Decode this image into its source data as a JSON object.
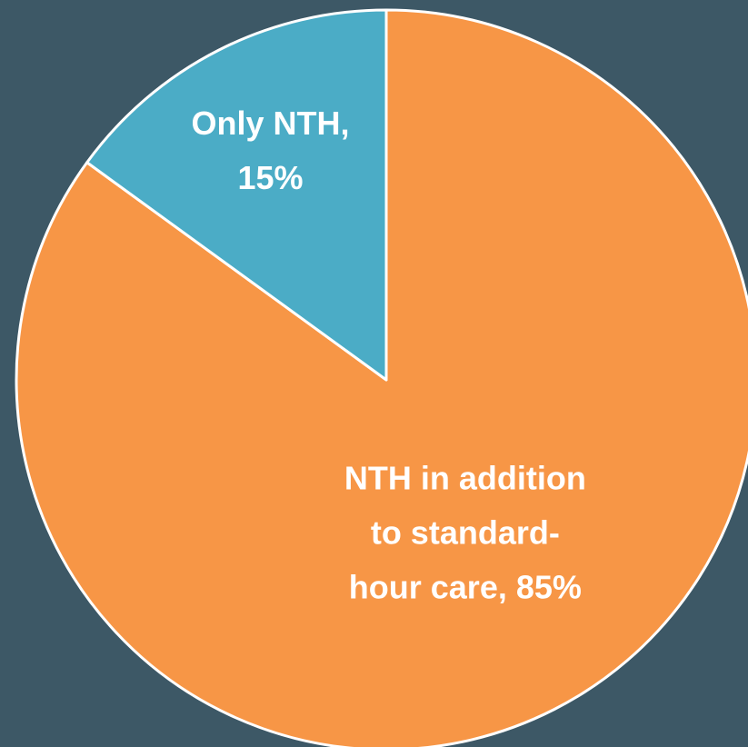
{
  "chart_data": {
    "type": "pie",
    "values": [
      85,
      15
    ],
    "colors": [
      "#f79646",
      "#4bacc6"
    ],
    "labels": [
      [
        "NTH in addition",
        "to standard-",
        "hour care, 85%"
      ],
      [
        "Only NTH,",
        "15%"
      ]
    ]
  }
}
